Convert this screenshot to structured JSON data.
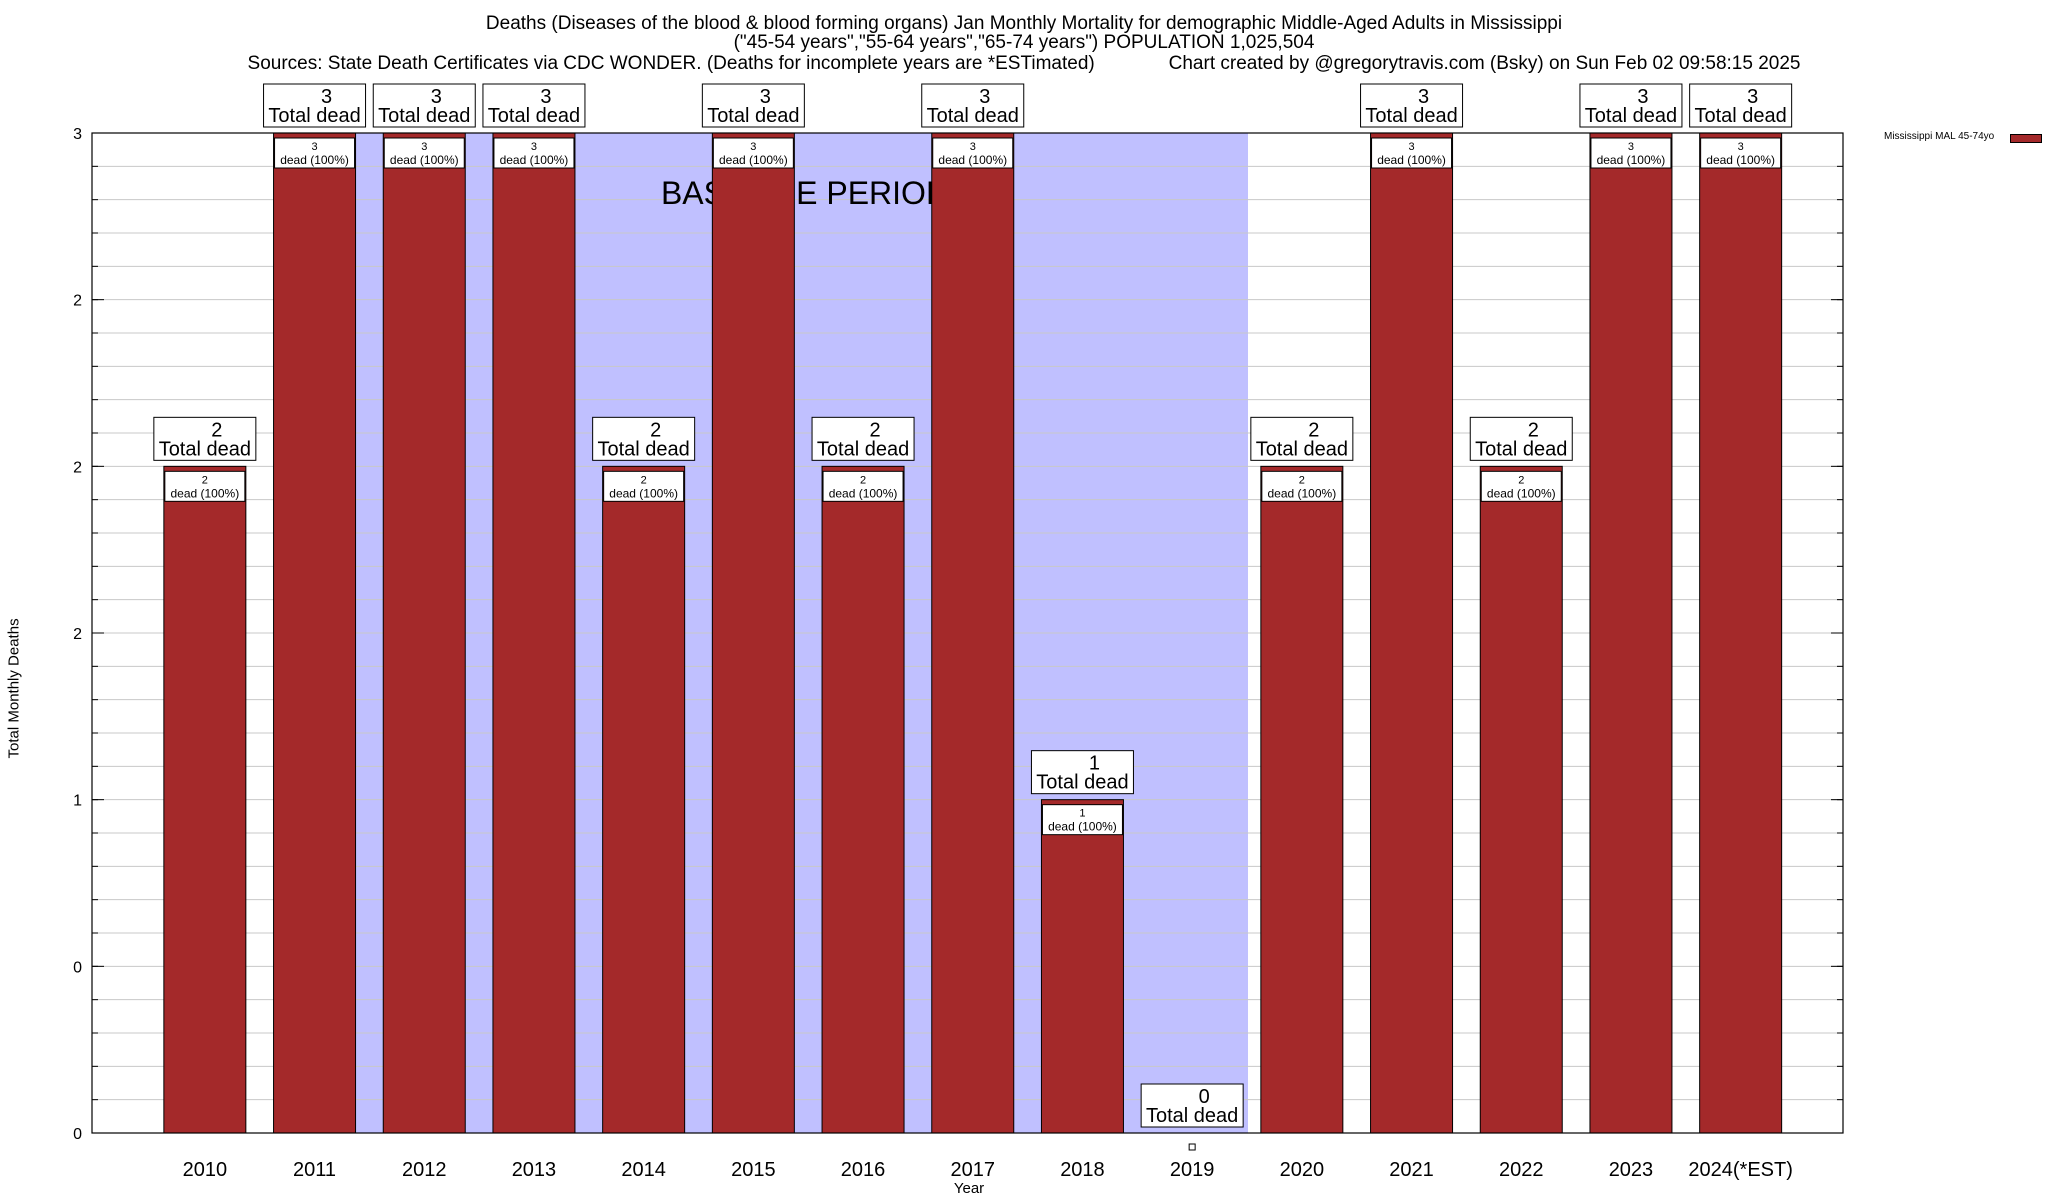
{
  "title": {
    "line1": "Deaths (Diseases of the blood & blood forming organs) Jan Monthly Mortality for demographic Middle-Aged Adults in Mississippi",
    "line2": "(\"45-54 years\",\"55-64 years\",\"65-74 years\") POPULATION 1,025,504",
    "line3": "Sources: State Death Certificates via CDC WONDER. (Deaths for incomplete years are *ESTimated)              Chart created by @gregorytravis.com (Bsky) on Sun Feb 02 09:58:15 2025"
  },
  "colors": {
    "bar": "#a4292a",
    "baseline": "#c0c0ff",
    "grid": "#c8c8c8"
  },
  "chart_data": {
    "type": "bar",
    "xlabel": "Year",
    "ylabel": "Total Monthly Deaths",
    "ylim": [
      0,
      3
    ],
    "y_ticks": [
      {
        "value": 0,
        "label": "0"
      },
      {
        "value": 0.5,
        "label": "0"
      },
      {
        "value": 1,
        "label": "1"
      },
      {
        "value": 1.5,
        "label": "2"
      },
      {
        "value": 2,
        "label": "2"
      },
      {
        "value": 2.5,
        "label": "2"
      },
      {
        "value": 3,
        "label": "3"
      }
    ],
    "grid": true,
    "categories": [
      "2010",
      "2011",
      "2012",
      "2013",
      "2014",
      "2015",
      "2016",
      "2017",
      "2018",
      "2019",
      "2020",
      "2021",
      "2022",
      "2023",
      "2024(*EST)"
    ],
    "series": [
      {
        "name": "Mississippi MAL 45-74yo",
        "values": [
          2,
          3,
          3,
          3,
          2,
          3,
          2,
          3,
          1,
          0,
          2,
          3,
          2,
          3,
          3
        ]
      }
    ],
    "total_labels": [
      "2\nTotal dead",
      "3\nTotal dead",
      "3\nTotal dead",
      "3\nTotal dead",
      "2\nTotal dead",
      "3\nTotal dead",
      "2\nTotal dead",
      "3\nTotal dead",
      "1\nTotal dead",
      "0\nTotal dead",
      "2\nTotal dead",
      "3\nTotal dead",
      "2\nTotal dead",
      "3\nTotal dead",
      "3\nTotal dead"
    ],
    "inner_labels": [
      "2\ndead (100%)",
      "3\ndead (100%)",
      "3\ndead (100%)",
      "3\ndead (100%)",
      "2\ndead (100%)",
      "3\ndead (100%)",
      "2\ndead (100%)",
      "3\ndead (100%)",
      "1\ndead (100%)",
      "",
      "2\ndead (100%)",
      "3\ndead (100%)",
      "2\ndead (100%)",
      "3\ndead (100%)",
      "3\ndead (100%)"
    ],
    "baseline_period": {
      "label": "BASELINE PERIOD",
      "from": "2012",
      "to": "2019"
    },
    "legend_position": "top-right"
  }
}
